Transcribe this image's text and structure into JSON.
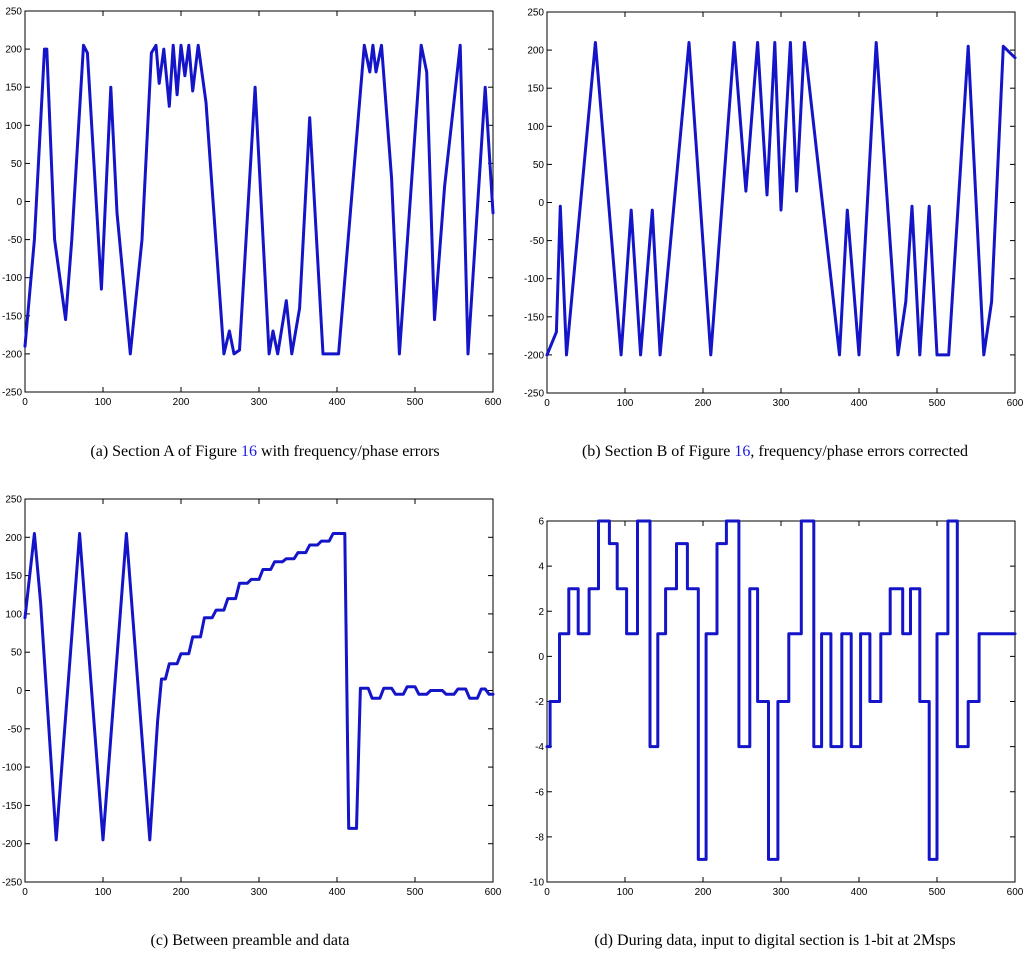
{
  "colors": {
    "line": "#1414c8",
    "reference": "#1a1adc",
    "axes": "#000000"
  },
  "chart_data": [
    {
      "id": "a",
      "type": "line",
      "caption": {
        "prefix": "(a)  Section A of Figure ",
        "ref": "16",
        "suffix": " with frequency/phase errors"
      },
      "xlim": [
        0,
        600
      ],
      "ylim": [
        -250,
        250
      ],
      "xticks": [
        0,
        100,
        200,
        300,
        400,
        500,
        600
      ],
      "yticks": [
        -250,
        -200,
        -150,
        -100,
        -50,
        0,
        50,
        100,
        150,
        200,
        250
      ],
      "x": [
        0,
        12,
        25,
        28,
        38,
        52,
        60,
        75,
        80,
        98,
        110,
        118,
        135,
        150,
        162,
        168,
        172,
        178,
        185,
        190,
        195,
        200,
        205,
        210,
        215,
        222,
        232,
        255,
        262,
        268,
        275,
        295,
        313,
        318,
        324,
        335,
        342,
        352,
        365,
        382,
        402,
        435,
        442,
        446,
        450,
        457,
        470,
        480,
        508,
        515,
        525,
        538,
        558,
        568,
        590,
        600
      ],
      "values": [
        -190,
        -50,
        200,
        200,
        -50,
        -155,
        -50,
        205,
        195,
        -115,
        150,
        -15,
        -200,
        -50,
        195,
        205,
        155,
        200,
        125,
        205,
        140,
        205,
        165,
        205,
        145,
        205,
        130,
        -200,
        -170,
        -200,
        -195,
        150,
        -200,
        -170,
        -200,
        -130,
        -200,
        -140,
        110,
        -200,
        -200,
        205,
        170,
        205,
        170,
        205,
        30,
        -200,
        205,
        170,
        -155,
        20,
        205,
        -200,
        150,
        -15
      ]
    },
    {
      "id": "b",
      "type": "line",
      "caption": {
        "prefix": "(b)  Section B of Figure ",
        "ref": "16",
        "suffix": ", frequency/phase errors corrected"
      },
      "xlim": [
        0,
        600
      ],
      "ylim": [
        -250,
        250
      ],
      "xticks": [
        0,
        100,
        200,
        300,
        400,
        500,
        600
      ],
      "yticks": [
        -250,
        -200,
        -150,
        -100,
        -50,
        0,
        50,
        100,
        150,
        200,
        250
      ],
      "x": [
        0,
        12,
        17,
        25,
        62,
        95,
        108,
        120,
        135,
        145,
        182,
        210,
        240,
        255,
        270,
        282,
        292,
        300,
        312,
        320,
        330,
        375,
        385,
        400,
        422,
        450,
        460,
        468,
        478,
        490,
        500,
        515,
        540,
        560,
        570,
        585,
        600
      ],
      "values": [
        -200,
        -170,
        -5,
        -200,
        210,
        -200,
        -10,
        -200,
        -10,
        -200,
        210,
        -200,
        210,
        15,
        210,
        10,
        210,
        -10,
        210,
        15,
        210,
        -200,
        -10,
        -200,
        210,
        -200,
        -130,
        -5,
        -200,
        -5,
        -200,
        -200,
        205,
        -200,
        -130,
        205,
        190
      ]
    },
    {
      "id": "c",
      "type": "line",
      "caption": {
        "prefix": "(c)  Between preamble and data",
        "ref": "",
        "suffix": ""
      },
      "xlim": [
        0,
        600
      ],
      "ylim": [
        -250,
        250
      ],
      "xticks": [
        0,
        100,
        200,
        300,
        400,
        500,
        600
      ],
      "yticks": [
        -250,
        -200,
        -150,
        -100,
        -50,
        0,
        50,
        100,
        150,
        200,
        250
      ],
      "x": [
        0,
        12,
        20,
        40,
        70,
        100,
        130,
        160,
        170,
        175,
        180,
        185,
        190,
        195,
        200,
        205,
        210,
        215,
        220,
        225,
        230,
        235,
        240,
        245,
        250,
        255,
        260,
        265,
        270,
        275,
        280,
        285,
        290,
        295,
        300,
        305,
        310,
        315,
        320,
        325,
        330,
        335,
        340,
        345,
        350,
        355,
        360,
        365,
        370,
        375,
        380,
        385,
        390,
        395,
        400,
        405,
        410,
        415,
        420,
        425,
        430,
        435,
        440,
        445,
        450,
        455,
        460,
        465,
        470,
        475,
        480,
        485,
        490,
        495,
        500,
        505,
        510,
        515,
        520,
        525,
        530,
        535,
        540,
        545,
        550,
        555,
        560,
        565,
        570,
        575,
        580,
        585,
        590,
        595,
        600
      ],
      "values": [
        95,
        205,
        115,
        -195,
        205,
        -195,
        205,
        -195,
        -40,
        15,
        15,
        35,
        35,
        35,
        48,
        48,
        48,
        70,
        70,
        70,
        95,
        95,
        95,
        105,
        105,
        105,
        120,
        120,
        120,
        140,
        140,
        140,
        145,
        145,
        145,
        158,
        158,
        158,
        168,
        168,
        168,
        172,
        172,
        172,
        180,
        180,
        180,
        190,
        190,
        190,
        195,
        195,
        195,
        205,
        205,
        205,
        205,
        -180,
        -180,
        -180,
        3,
        3,
        3,
        -10,
        -10,
        -10,
        3,
        3,
        3,
        -5,
        -5,
        -5,
        5,
        5,
        5,
        -5,
        -5,
        -5,
        0,
        0,
        0,
        0,
        -5,
        -5,
        -5,
        2,
        2,
        2,
        -10,
        -10,
        -10,
        2,
        2,
        -5,
        -5
      ]
    },
    {
      "id": "d",
      "type": "line",
      "caption": {
        "prefix": "(d)  During data, input to digital section is 1-bit at 2Msps",
        "ref": "",
        "suffix": ""
      },
      "xlim": [
        0,
        600
      ],
      "ylim": [
        -10,
        6
      ],
      "xticks": [
        0,
        100,
        200,
        300,
        400,
        500,
        600
      ],
      "yticks": [
        -10,
        -8,
        -6,
        -4,
        -2,
        0,
        2,
        4,
        6
      ],
      "x": [
        0,
        4,
        4,
        16,
        16,
        28,
        28,
        40,
        40,
        54,
        54,
        66,
        66,
        80,
        80,
        90,
        90,
        102,
        102,
        116,
        116,
        132,
        132,
        142,
        142,
        152,
        152,
        166,
        166,
        180,
        180,
        194,
        194,
        204,
        204,
        218,
        218,
        230,
        230,
        246,
        246,
        260,
        260,
        270,
        270,
        284,
        284,
        296,
        296,
        310,
        310,
        326,
        326,
        342,
        342,
        352,
        352,
        364,
        364,
        378,
        378,
        390,
        390,
        402,
        402,
        414,
        414,
        428,
        428,
        440,
        440,
        456,
        456,
        466,
        466,
        478,
        478,
        490,
        490,
        500,
        500,
        514,
        514,
        526,
        526,
        540,
        540,
        554,
        554,
        564,
        564,
        578,
        578,
        590,
        590,
        600
      ],
      "values": [
        -4,
        -4,
        -2,
        -2,
        1,
        1,
        3,
        3,
        1,
        1,
        3,
        3,
        6,
        6,
        5,
        5,
        3,
        3,
        1,
        1,
        6,
        6,
        -4,
        -4,
        1,
        1,
        3,
        3,
        5,
        5,
        3,
        3,
        -9,
        -9,
        1,
        1,
        5,
        5,
        6,
        6,
        -4,
        -4,
        3,
        3,
        -2,
        -2,
        -9,
        -9,
        -2,
        -2,
        1,
        1,
        6,
        6,
        -4,
        -4,
        1,
        1,
        -4,
        -4,
        1,
        1,
        -4,
        -4,
        1,
        1,
        -2,
        -2,
        1,
        1,
        3,
        3,
        1,
        1,
        3,
        3,
        -2,
        -2,
        -9,
        -9,
        1,
        1,
        6,
        6,
        -4,
        -4,
        -2,
        -2,
        1,
        1,
        1,
        1,
        1,
        1,
        1,
        1
      ]
    }
  ]
}
